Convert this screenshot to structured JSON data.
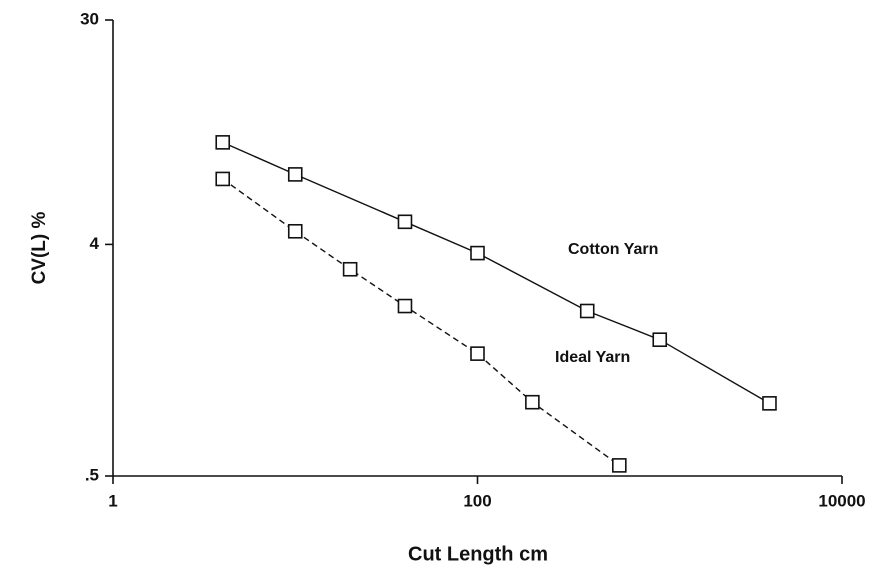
{
  "chart_data": {
    "type": "line",
    "xlabel": "Cut Length cm",
    "ylabel": "CV(L) %",
    "xscale": "log",
    "yscale": "log",
    "xlim": [
      1,
      10000
    ],
    "xticks": [
      1,
      100,
      10000
    ],
    "ylim": [
      0.5,
      30
    ],
    "yticks": [
      {
        "value": 0.5,
        "label": ".5"
      },
      4,
      30
    ],
    "series": [
      {
        "name": "Cotton Yarn",
        "color": "#111111",
        "dashed": false,
        "x": [
          4,
          10,
          40,
          100,
          400,
          1000,
          4000
        ],
        "values": [
          10,
          7.5,
          4.9,
          3.7,
          2.2,
          1.7,
          0.96
        ]
      },
      {
        "name": "Ideal Yarn",
        "color": "#111111",
        "dashed": true,
        "x": [
          4,
          10,
          20,
          40,
          100,
          200,
          600
        ],
        "values": [
          7.2,
          4.5,
          3.2,
          2.3,
          1.5,
          0.97,
          0.55
        ]
      }
    ]
  }
}
